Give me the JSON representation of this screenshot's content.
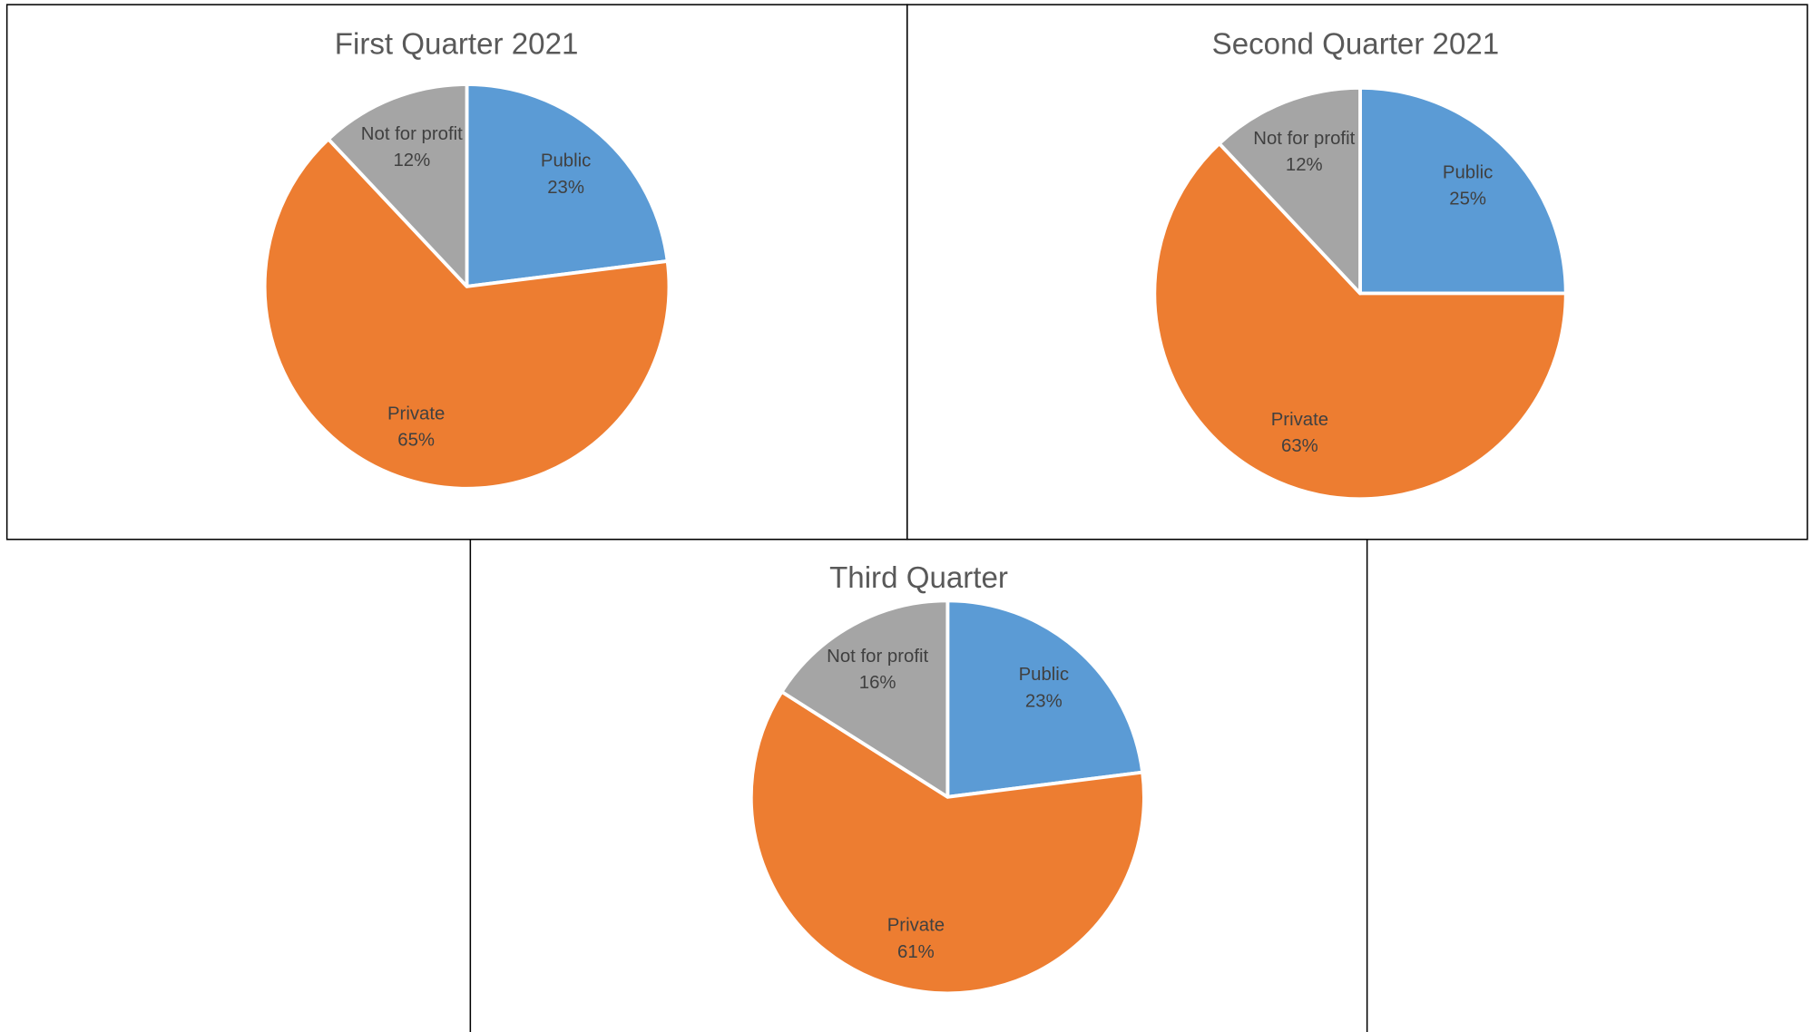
{
  "chart_data": [
    {
      "type": "pie",
      "title": "First Quarter 2021",
      "categories": [
        "Public",
        "Private",
        "Not for profit"
      ],
      "values": [
        23,
        65,
        12
      ],
      "value_labels": [
        "23%",
        "65%",
        "12%"
      ],
      "colors": [
        "#5b9bd5",
        "#ed7d31",
        "#a5a5a5"
      ]
    },
    {
      "type": "pie",
      "title": "Second Quarter 2021",
      "categories": [
        "Public",
        "Private",
        "Not for profit"
      ],
      "values": [
        25,
        63,
        12
      ],
      "value_labels": [
        "25%",
        "63%",
        "12%"
      ],
      "colors": [
        "#5b9bd5",
        "#ed7d31",
        "#a5a5a5"
      ]
    },
    {
      "type": "pie",
      "title": "Third Quarter",
      "categories": [
        "Public",
        "Private",
        "Not for profit"
      ],
      "values": [
        23,
        61,
        16
      ],
      "value_labels": [
        "23%",
        "61%",
        "16%"
      ],
      "colors": [
        "#5b9bd5",
        "#ed7d31",
        "#a5a5a5"
      ]
    }
  ]
}
